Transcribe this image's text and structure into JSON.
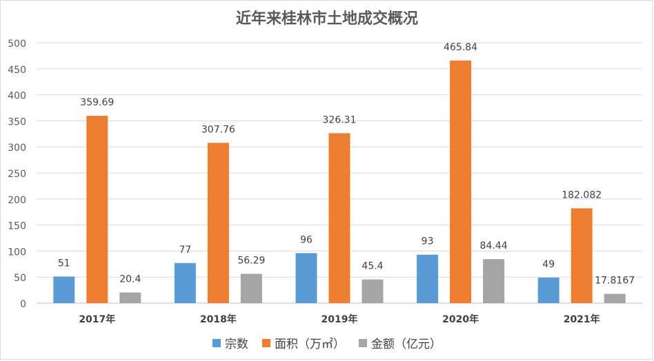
{
  "chart_data": {
    "type": "bar",
    "title": "近年来桂林市土地成交概况",
    "categories": [
      "2017年",
      "2018年",
      "2019年",
      "2020年",
      "2021年"
    ],
    "series": [
      {
        "name": "宗数",
        "color": "#5b9bd5",
        "values": [
          51,
          77,
          96,
          93,
          49
        ],
        "labels": [
          "51",
          "77",
          "96",
          "93",
          "49"
        ]
      },
      {
        "name": "面积（万㎡）",
        "color": "#ed7d31",
        "values": [
          359.69,
          307.76,
          326.31,
          465.84,
          182.082
        ],
        "labels": [
          "359.69",
          "307.76",
          "326.31",
          "465.84",
          "182.082"
        ]
      },
      {
        "name": "金额（亿元）",
        "color": "#a5a5a5",
        "values": [
          20.4,
          56.29,
          45.4,
          84.44,
          17.8167
        ],
        "labels": [
          "20.4",
          "56.29",
          "45.4",
          "84.44",
          "17.8167"
        ]
      }
    ],
    "ylim": [
      0,
      500
    ],
    "yticks": [
      0,
      50,
      100,
      150,
      200,
      250,
      300,
      350,
      400,
      450,
      500
    ],
    "grid": true,
    "legend_position": "bottom"
  }
}
